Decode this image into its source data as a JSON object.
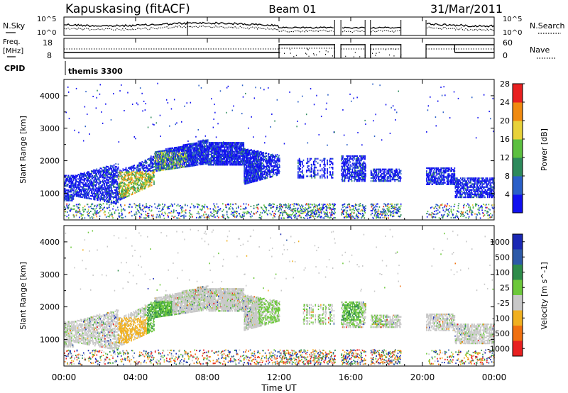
{
  "header": {
    "station": "Kapuskasing (fitACF)",
    "beam": "Beam 01",
    "date": "31/Mar/2011"
  },
  "status_panels": {
    "nsky_label": "N.Sky",
    "nsky_ticks": [
      "10^5",
      "10^0"
    ],
    "nsearch_label": "N.Search",
    "nsearch_ticks": [
      "10^5",
      "10^0"
    ],
    "freq_label_1": "Freq.",
    "freq_label_2": "[MHz]",
    "freq_ticks": [
      "18",
      "8"
    ],
    "nave_label": "Nave",
    "nave_ticks": [
      "60",
      "0"
    ],
    "cpid_label": "CPID",
    "cpid_value": "themis 3300"
  },
  "chart_data": [
    {
      "type": "heatmap",
      "panel": "power",
      "ylabel": "Slant Range [km]",
      "yticks": [
        1000,
        2000,
        3000,
        4000
      ],
      "ylim": [
        180,
        4500
      ],
      "xlim_hours": [
        0,
        24
      ],
      "colorbar_label": "Power [dB]",
      "colorbar_ticks": [
        "4",
        "8",
        "12",
        "16",
        "20",
        "24",
        "28"
      ],
      "colorbar_colors": [
        "#1010f0",
        "#2a5fc8",
        "#2d8a5c",
        "#5cc040",
        "#e8d23a",
        "#f08a10",
        "#e82020"
      ],
      "colorbar_range": [
        0,
        30
      ]
    },
    {
      "type": "heatmap",
      "panel": "velocity",
      "ylabel": "Slant Range [km]",
      "yticks": [
        1000,
        2000,
        3000,
        4000
      ],
      "ylim": [
        180,
        4500
      ],
      "xlim_hours": [
        0,
        24
      ],
      "colorbar_label": "Velocity [m s^-1]",
      "colorbar_ticks": [
        "1000",
        "500",
        "100",
        "25",
        "-25",
        "-100",
        "-500",
        "-1000"
      ],
      "colorbar_colors": [
        "#1a28b4",
        "#2d5aa8",
        "#2e8c4a",
        "#6cc83a",
        "#c8c8c8",
        "#f0b020",
        "#f07010",
        "#e82020"
      ]
    }
  ],
  "xaxis": {
    "label": "Time UT",
    "ticks": [
      "00:00",
      "04:00",
      "08:00",
      "12:00",
      "16:00",
      "20:00",
      "00:00"
    ],
    "tick_hours": [
      0,
      4,
      8,
      12,
      16,
      20,
      24
    ]
  }
}
